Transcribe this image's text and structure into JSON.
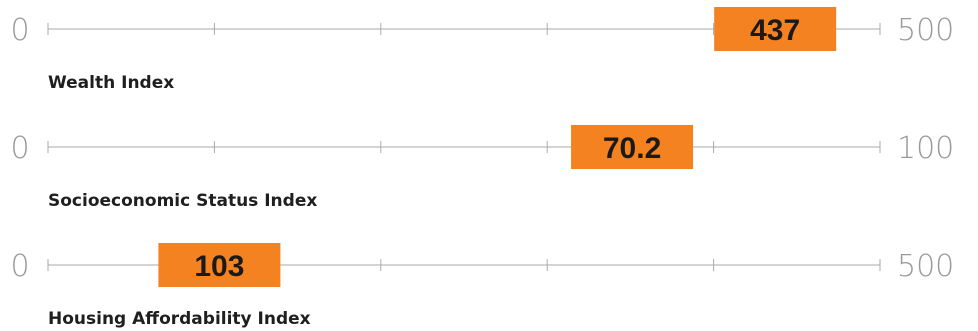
{
  "chart_data": {
    "type": "gauge",
    "gauges": [
      {
        "title": "Wealth Index",
        "min": 0,
        "max": 500,
        "min_label": "0",
        "max_label": "500",
        "value": 437,
        "value_label": "437"
      },
      {
        "title": "Socioeconomic Status Index",
        "min": 0,
        "max": 100,
        "min_label": "0",
        "max_label": "100",
        "value": 70.2,
        "value_label": "70.2"
      },
      {
        "title": "Housing Affordability Index",
        "min": 0,
        "max": 500,
        "min_label": "0",
        "max_label": "500",
        "value": 103,
        "value_label": "103"
      }
    ]
  },
  "colors": {
    "marker": "#f58220",
    "axis_line": "#aaaaaa",
    "end_label": "#9a9a9a",
    "title": "#1f1f1f",
    "marker_text": "#1a1a1a"
  }
}
